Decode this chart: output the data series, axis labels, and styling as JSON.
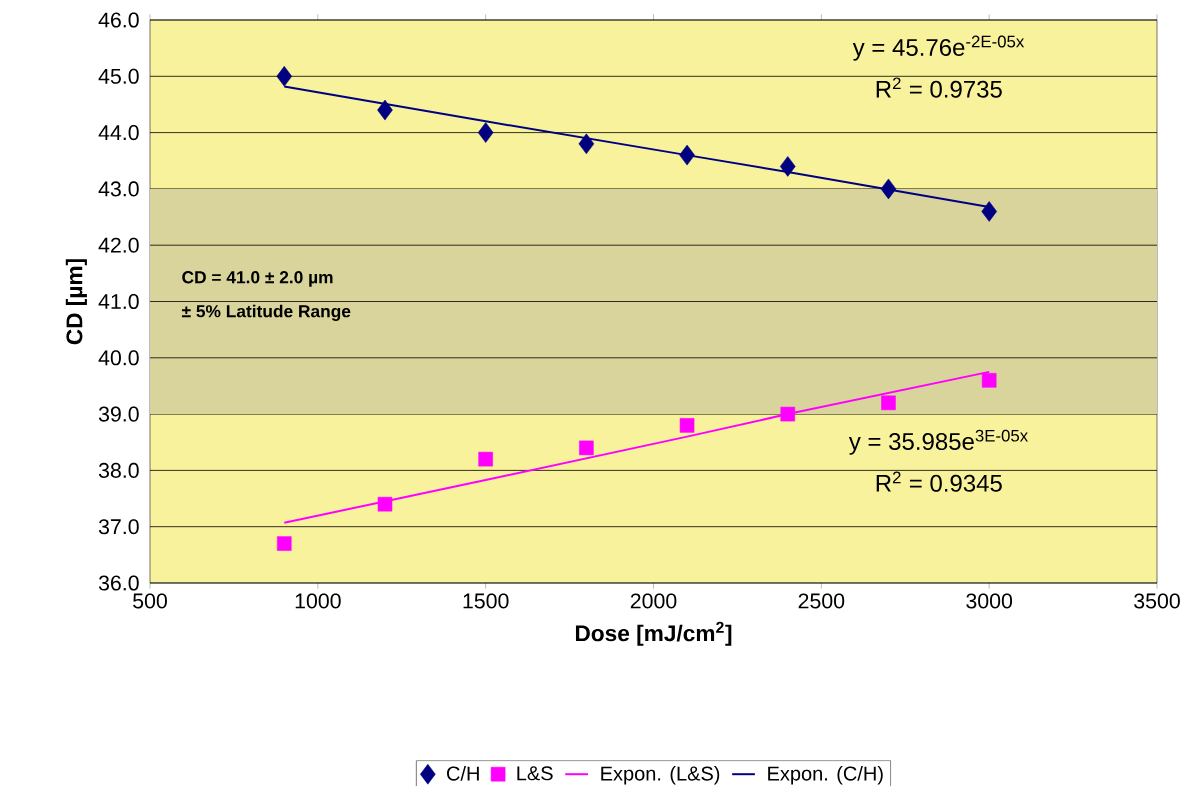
{
  "chart_data": {
    "type": "scatter",
    "xlabel": "Dose [mJ/cm$^{2}$]",
    "ylabel": "CD [µm]",
    "xlim": [
      500,
      3500
    ],
    "xticks": [
      500,
      1000,
      1500,
      2000,
      2500,
      3000,
      3500
    ],
    "ylim": [
      36,
      46
    ],
    "yticks": [
      {
        "value": 36,
        "label": "36.0"
      },
      {
        "value": 37,
        "label": "37.0"
      },
      {
        "value": 38,
        "label": "38.0"
      },
      {
        "value": 39,
        "label": "39.0"
      },
      {
        "value": 40,
        "label": "40.0"
      },
      {
        "value": 41,
        "label": "41.0"
      },
      {
        "value": 42,
        "label": "42.0"
      },
      {
        "value": 43,
        "label": "43.0"
      },
      {
        "value": 44,
        "label": "44.0"
      },
      {
        "value": 45,
        "label": "45.0"
      },
      {
        "value": 46,
        "label": "46.0"
      }
    ],
    "grid": "y",
    "legend": "bottom",
    "x": [
      900,
      1200,
      1500,
      1800,
      2100,
      2400,
      2700,
      3000
    ],
    "series": [
      {
        "name": "C/H",
        "marker": "diamond",
        "color": "#000080",
        "values": [
          45.0,
          44.4,
          44.0,
          43.8,
          43.6,
          43.4,
          43.0,
          42.6
        ]
      },
      {
        "name": "L&S",
        "marker": "square",
        "color": "#ff00ff",
        "values": [
          36.7,
          37.4,
          38.2,
          38.4,
          38.8,
          39.0,
          39.2,
          39.6
        ]
      },
      {
        "name": "Expon. (L&S)",
        "type": "line",
        "color": "#ff00ff",
        "x": [
          900,
          1500,
          2100,
          2400,
          3000
        ],
        "values": [
          37.07,
          37.83,
          38.6,
          39.0,
          39.75
        ]
      },
      {
        "name": "Expon. (C/H)",
        "type": "line",
        "color": "#000080",
        "x": [
          900,
          1500,
          2100,
          2400,
          3000
        ],
        "values": [
          44.82,
          44.2,
          43.6,
          43.3,
          42.68
        ]
      }
    ],
    "bands": [
      {
        "axis": "y",
        "from": 39,
        "to": 43,
        "label": "CD = 41.0  ± 2.0 µm",
        "color": "#d8d49c"
      }
    ],
    "annotations": [
      "y = 45.76e$^{-2E-05x}$",
      "R$^{2}$ = 0.9735",
      "y = 35.985e$^{3E-05x}$",
      "R$^{2}$ = 0.9345",
      "± 5% Latitude Range"
    ]
  }
}
